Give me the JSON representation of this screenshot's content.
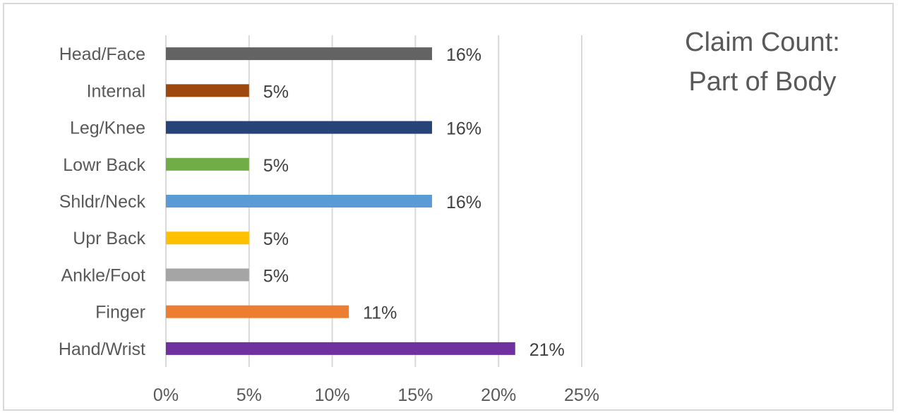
{
  "chart_data": {
    "type": "bar",
    "orientation": "horizontal",
    "title": "Claim Count: Part of Body",
    "title_lines": [
      "Claim Count:",
      "Part of Body"
    ],
    "categories": [
      "Head/Face",
      "Internal",
      "Leg/Knee",
      "Lowr Back",
      "Shldr/Neck",
      "Upr Back",
      "Ankle/Foot",
      "Finger",
      "Hand/Wrist"
    ],
    "values": [
      16,
      5,
      16,
      5,
      16,
      5,
      5,
      11,
      21
    ],
    "data_labels": [
      "16%",
      "5%",
      "16%",
      "5%",
      "16%",
      "5%",
      "5%",
      "11%",
      "21%"
    ],
    "colors": [
      "#636363",
      "#9e480e",
      "#264478",
      "#70ad47",
      "#5b9bd5",
      "#ffc000",
      "#a5a5a5",
      "#ed7d31",
      "#7030a0"
    ],
    "x_ticks": [
      0,
      5,
      10,
      15,
      20,
      25
    ],
    "x_tick_labels": [
      "0%",
      "5%",
      "10%",
      "15%",
      "20%",
      "25%"
    ],
    "xlim": [
      0,
      25
    ],
    "grid": true,
    "xlabel": "",
    "ylabel": ""
  }
}
